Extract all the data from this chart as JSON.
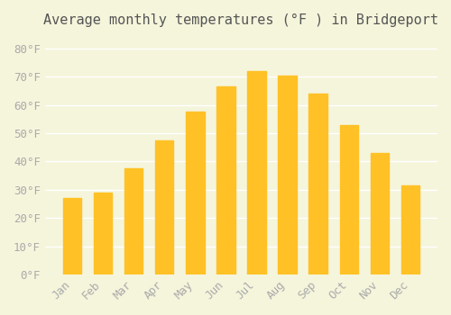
{
  "title": "Average monthly temperatures (°F ) in Bridgeport",
  "months": [
    "Jan",
    "Feb",
    "Mar",
    "Apr",
    "May",
    "Jun",
    "Jul",
    "Aug",
    "Sep",
    "Oct",
    "Nov",
    "Dec"
  ],
  "values": [
    27,
    29,
    37.5,
    47.5,
    57.5,
    66.5,
    72,
    70.5,
    64,
    53,
    43,
    31.5
  ],
  "bar_color_top": "#FFC125",
  "bar_color_bottom": "#FFD966",
  "background_color": "#F5F5DC",
  "grid_color": "#FFFFFF",
  "title_color": "#555555",
  "tick_color": "#AAAAAA",
  "ylim": [
    0,
    85
  ],
  "yticks": [
    0,
    10,
    20,
    30,
    40,
    50,
    60,
    70,
    80
  ],
  "title_fontsize": 11,
  "tick_fontsize": 9
}
